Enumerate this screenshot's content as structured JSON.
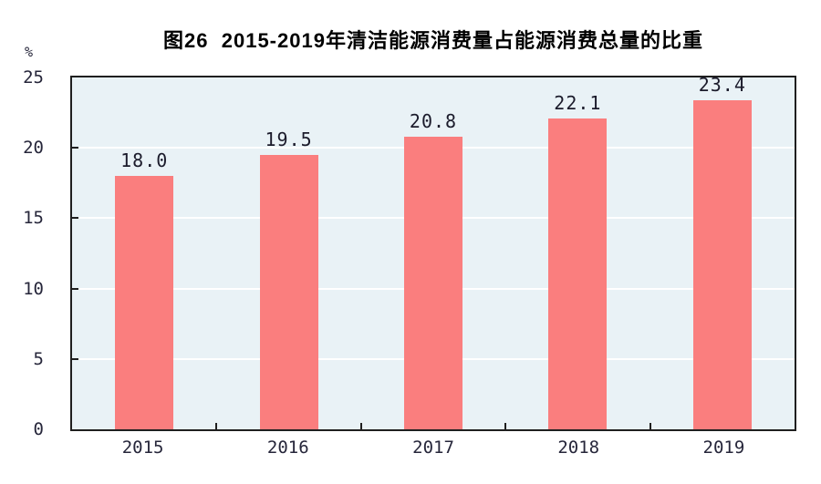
{
  "title": "图26  2015-2019年清洁能源消费量占能源消费总量的比重",
  "y_axis_unit": "%",
  "chart_data": {
    "type": "bar",
    "title": "图26  2015-2019年清洁能源消费量占能源消费总量的比重",
    "categories": [
      "2015",
      "2016",
      "2017",
      "2018",
      "2019"
    ],
    "values": [
      18.0,
      19.5,
      20.8,
      22.1,
      23.4
    ],
    "value_labels": [
      "18.0",
      "19.5",
      "20.8",
      "22.1",
      "23.4"
    ],
    "xlabel": "",
    "ylabel": "%",
    "ylim": [
      0,
      25
    ],
    "yticks": [
      0,
      5,
      10,
      15,
      20,
      25
    ],
    "gridlines": [
      5,
      10,
      15,
      20
    ],
    "grid": true,
    "legend": "none",
    "bar_color": "#fa7e7e",
    "plot_bg_color": "#e9f2f6",
    "grid_color": "#ffffff",
    "axis_color": "#1f1f1f",
    "text_color": "#26263a"
  }
}
